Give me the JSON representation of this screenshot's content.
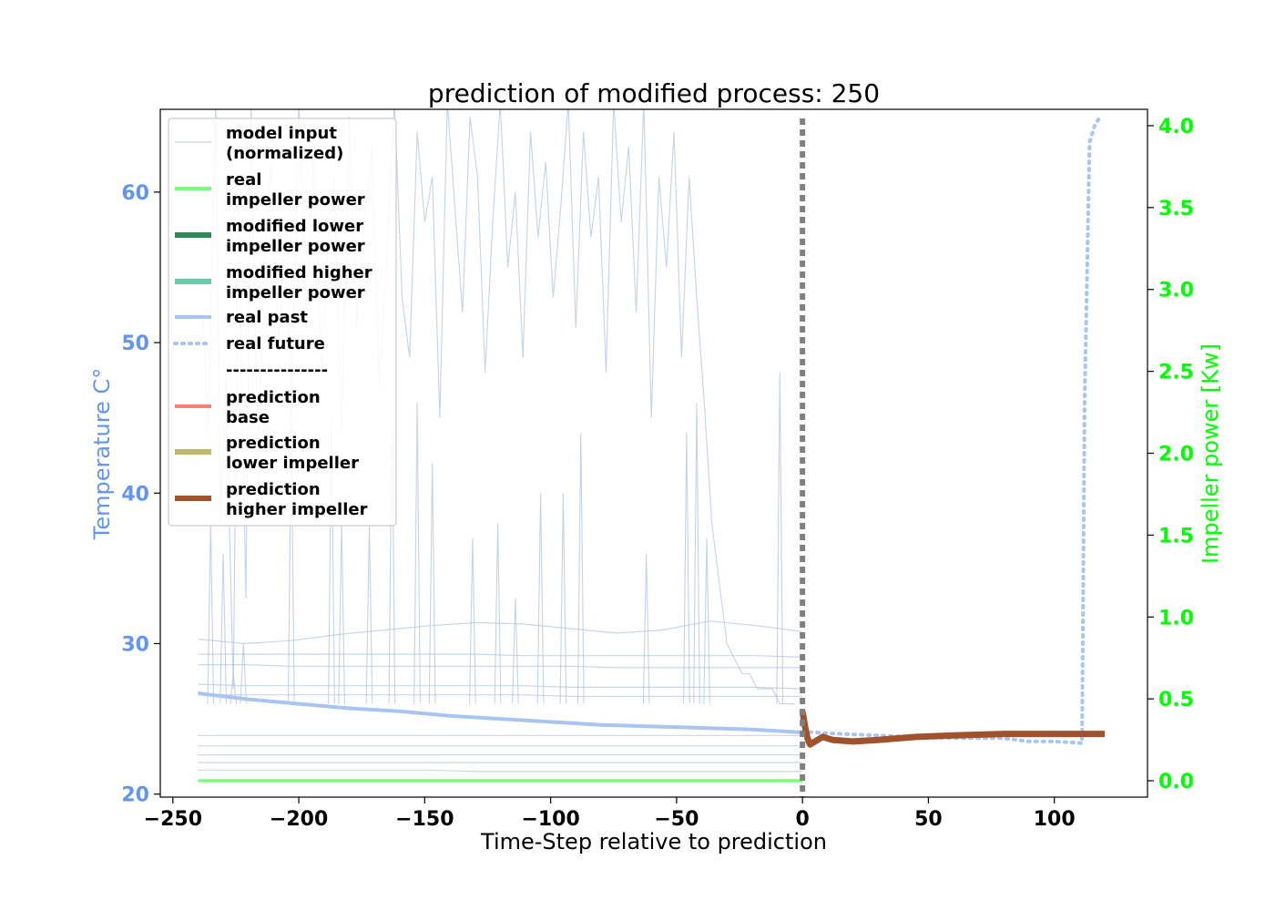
{
  "chart_data": {
    "type": "line",
    "title": "prediction of modified process: 250",
    "xlabel": "Time-Step relative to prediction",
    "ylabel_left": "Temperature C°",
    "ylabel_right": "Impeller power [Kw]",
    "xlim": [
      -255,
      137
    ],
    "ylim_left": [
      19.8,
      65.5
    ],
    "ylim_right": [
      -0.1,
      4.1
    ],
    "xticks": [
      -250,
      -200,
      -150,
      -100,
      -50,
      0,
      50,
      100
    ],
    "xtick_labels": [
      "−250",
      "−200",
      "−150",
      "−100",
      "−50",
      "0",
      "50",
      "100"
    ],
    "yticks_left": [
      20,
      30,
      40,
      50,
      60
    ],
    "yticks_right": [
      0.0,
      0.5,
      1.0,
      1.5,
      2.0,
      2.5,
      3.0,
      3.5,
      4.0
    ],
    "ytick_labels_right": [
      "0.0",
      "0.5",
      "1.0",
      "1.5",
      "2.0",
      "2.5",
      "3.0",
      "3.5",
      "4.0"
    ],
    "grid": false,
    "legend_position": "upper-left",
    "prediction_marker_x": 0,
    "colors": {
      "model_input": "#B0C4DE",
      "real_impeller": "#7CFC7C",
      "modified_lower": "#2E8B57",
      "modified_higher": "#66CDAA",
      "real_past": "#A8C4F0",
      "real_future": "#A8C4F0",
      "prediction_base": "#FA8072",
      "prediction_lower": "#BDB76B",
      "prediction_higher": "#A0522D",
      "marker": "#808080",
      "left_axis": "#6495ED",
      "right_axis": "#00FF00"
    },
    "legend": [
      {
        "label": "model input\n(normalized)",
        "style": "thin",
        "color_key": "model_input"
      },
      {
        "label": "real\nimpeller power",
        "style": "solid",
        "color_key": "real_impeller"
      },
      {
        "label": "modified lower\nimpeller power",
        "style": "thick",
        "color_key": "modified_lower"
      },
      {
        "label": "modified higher\nimpeller power",
        "style": "thick",
        "color_key": "modified_higher"
      },
      {
        "label": "real past",
        "style": "solid",
        "color_key": "real_past"
      },
      {
        "label": "real future",
        "style": "dotted",
        "color_key": "real_future"
      },
      {
        "label": "---------------",
        "style": "none",
        "color_key": ""
      },
      {
        "label": "prediction\nbase",
        "style": "solid",
        "color_key": "prediction_base"
      },
      {
        "label": "prediction\nlower impeller",
        "style": "thick",
        "color_key": "prediction_lower"
      },
      {
        "label": "prediction\nhigher impeller",
        "style": "thick",
        "color_key": "prediction_higher"
      }
    ],
    "series": [
      {
        "name": "real\nimpeller power",
        "axis": "right",
        "x": [
          -240,
          0
        ],
        "y": [
          0.0,
          0.0
        ]
      },
      {
        "name": "real past",
        "axis": "left",
        "x": [
          -240,
          -220,
          -200,
          -180,
          -160,
          -140,
          -120,
          -100,
          -80,
          -60,
          -40,
          -20,
          0
        ],
        "y": [
          26.7,
          26.3,
          26.0,
          25.7,
          25.5,
          25.2,
          25.0,
          24.8,
          24.6,
          24.5,
          24.4,
          24.3,
          24.1
        ]
      },
      {
        "name": "real future",
        "axis": "right",
        "x": [
          0,
          10,
          25,
          40,
          60,
          80,
          90,
          100,
          111,
          112,
          114,
          116,
          118
        ],
        "y": [
          0.3,
          0.29,
          0.28,
          0.27,
          0.26,
          0.26,
          0.24,
          0.24,
          0.23,
          2.3,
          3.9,
          4.0,
          4.05
        ]
      },
      {
        "name": "prediction\nhigher impeller",
        "axis": "left",
        "x": [
          0,
          1,
          2,
          3,
          5,
          8,
          12,
          20,
          30,
          45,
          60,
          80,
          100,
          120
        ],
        "y": [
          25.5,
          24.5,
          23.7,
          23.3,
          23.5,
          23.8,
          23.6,
          23.5,
          23.6,
          23.8,
          23.9,
          24.0,
          24.0,
          24.0
        ]
      }
    ],
    "model_input_lines": [
      {
        "y": [
          30.3,
          30.0,
          30.2,
          30.6,
          30.9,
          31.2,
          31.4,
          31.3,
          31.0,
          30.7,
          30.9,
          31.5,
          31.2,
          30.8
        ]
      },
      {
        "y": [
          29.3,
          29.3,
          29.3,
          29.3,
          29.3,
          29.3,
          29.3,
          29.2,
          29.2,
          29.2,
          29.2,
          29.2,
          29.2,
          29.1
        ]
      },
      {
        "y": [
          28.6,
          28.6,
          28.5,
          28.5,
          28.5,
          28.5,
          28.5,
          28.5,
          28.5,
          28.4,
          28.4,
          28.4,
          28.4,
          28.4
        ]
      },
      {
        "y": [
          27.3,
          27.2,
          27.2,
          27.2,
          27.2,
          27.2,
          27.2,
          27.2,
          27.1,
          27.1,
          27.1,
          27.1,
          27.1,
          27.0
        ]
      },
      {
        "y": [
          26.6,
          26.6,
          26.6,
          26.6,
          26.6,
          26.6,
          26.6,
          26.6,
          26.5,
          26.5,
          26.5,
          26.5,
          26.5,
          26.5
        ]
      },
      {
        "y": [
          23.9,
          23.9,
          23.9,
          23.9,
          23.9,
          23.9,
          23.9,
          23.9,
          23.9,
          23.9,
          23.9,
          23.9,
          23.9,
          23.9
        ]
      },
      {
        "y": [
          23.2,
          23.2,
          23.2,
          23.2,
          23.2,
          23.2,
          23.2,
          23.2,
          23.2,
          23.2,
          23.2,
          23.2,
          23.2,
          23.2
        ]
      },
      {
        "y": [
          22.6,
          22.6,
          22.6,
          22.6,
          22.6,
          22.6,
          22.6,
          22.6,
          22.6,
          22.6,
          22.6,
          22.6,
          22.6,
          22.6
        ]
      },
      {
        "y": [
          22.1,
          22.1,
          22.1,
          22.1,
          22.1,
          22.1,
          22.1,
          22.1,
          22.1,
          22.1,
          22.1,
          22.1,
          22.1,
          22.1
        ]
      },
      {
        "y": [
          21.6,
          21.6,
          21.6,
          21.6,
          21.6,
          21.6,
          21.5,
          21.5,
          21.5,
          21.5,
          21.5,
          21.5,
          21.5,
          21.5
        ]
      }
    ],
    "noisy_input_x": [
      -238,
      -236,
      -233,
      -231,
      -229,
      -226,
      -224,
      -221,
      -219,
      -216,
      -214,
      -211,
      -208,
      -205,
      -203,
      -200,
      -197,
      -194,
      -191,
      -189,
      -186,
      -183,
      -180,
      -177,
      -174,
      -171,
      -168,
      -165,
      -162,
      -159,
      -156,
      -153,
      -150,
      -147,
      -144,
      -141,
      -138,
      -135,
      -132,
      -129,
      -126,
      -123,
      -120,
      -117,
      -114,
      -111,
      -108,
      -105,
      -102,
      -99,
      -96,
      -93,
      -90,
      -87,
      -84,
      -81,
      -78,
      -75,
      -72,
      -69,
      -66,
      -63,
      -60,
      -57,
      -54,
      -51,
      -48,
      -45,
      -42,
      -39,
      -36,
      -33,
      -30,
      -27,
      -24,
      -21,
      -18,
      -15,
      -12,
      -9,
      -6,
      -3
    ],
    "noisy_input_y": [
      52,
      44,
      66,
      38,
      48,
      27,
      60,
      33,
      66,
      41,
      55,
      62,
      50,
      58,
      45,
      66,
      52,
      63,
      48,
      55,
      61,
      44,
      65,
      51,
      58,
      63,
      47,
      56,
      66,
      53,
      49,
      64,
      58,
      61,
      45,
      66,
      59,
      52,
      65,
      61,
      48,
      58,
      66,
      55,
      60,
      49,
      64,
      57,
      62,
      53,
      59,
      66,
      51,
      64,
      57,
      61,
      48,
      66,
      58,
      63,
      52,
      66,
      45,
      61,
      55,
      64,
      49,
      61,
      53,
      46,
      38,
      34,
      30,
      29,
      28,
      28,
      27,
      27,
      27,
      26,
      26,
      26
    ],
    "spike_x": [
      -235,
      -230,
      -226,
      -222,
      -203,
      -187,
      -183,
      -172,
      -163,
      -153,
      -147,
      -131,
      -121,
      -114,
      -104,
      -95,
      -88,
      -62,
      -46,
      -42,
      -38,
      -9
    ],
    "spike_y": [
      38,
      36,
      28,
      30,
      45,
      45,
      38,
      38,
      46,
      46,
      42,
      37,
      38,
      33,
      40,
      40,
      44,
      36,
      44,
      46,
      37,
      48
    ]
  }
}
